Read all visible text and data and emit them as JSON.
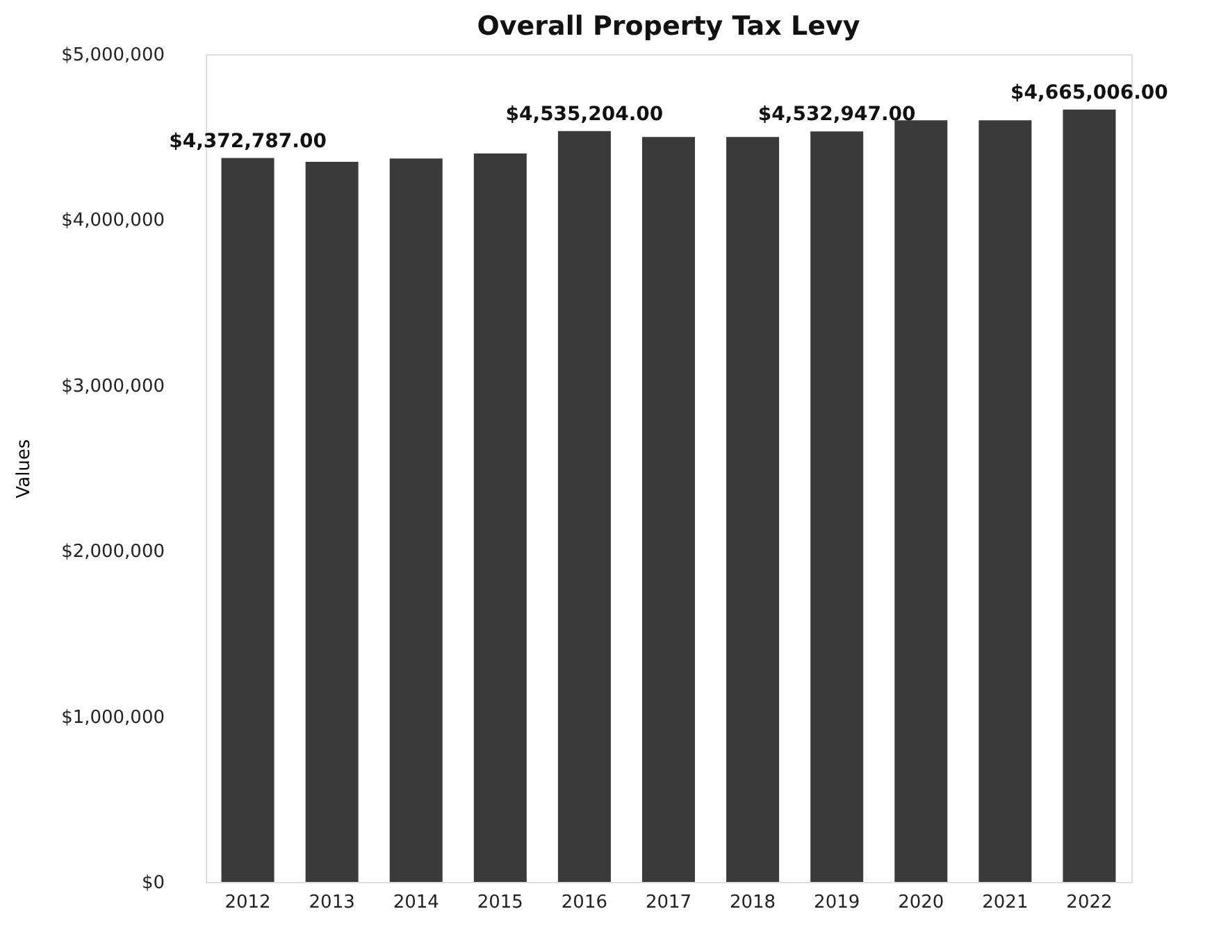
{
  "chart_data": {
    "type": "bar",
    "title": "Overall Property Tax Levy",
    "ylabel": "Values",
    "categories": [
      "2012",
      "2013",
      "2014",
      "2015",
      "2016",
      "2017",
      "2018",
      "2019",
      "2020",
      "2021",
      "2022"
    ],
    "values": [
      4372787.0,
      4350000,
      4370000,
      4400000,
      4535204.0,
      4500000,
      4500000,
      4532947.0,
      4600000,
      4600000,
      4665006.0
    ],
    "value_labels": [
      "$4,372,787.00",
      null,
      null,
      null,
      "$4,535,204.00",
      null,
      null,
      "$4,532,947.00",
      null,
      null,
      "$4,665,006.00"
    ],
    "color": "#3a3a3a",
    "ylim": [
      0,
      5000000
    ],
    "yticks": [
      {
        "value": 0,
        "label": "$0"
      },
      {
        "value": 1000000,
        "label": "$1,000,000"
      },
      {
        "value": 2000000,
        "label": "$2,000,000"
      },
      {
        "value": 3000000,
        "label": "$3,000,000"
      },
      {
        "value": 4000000,
        "label": "$4,000,000"
      },
      {
        "value": 5000000,
        "label": "$5,000,000"
      }
    ],
    "grid": false
  }
}
